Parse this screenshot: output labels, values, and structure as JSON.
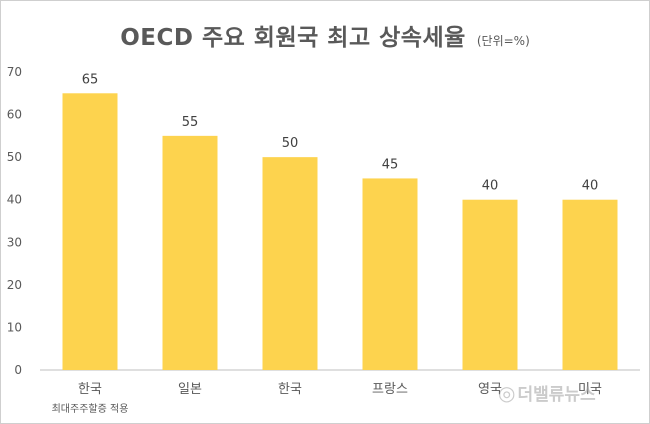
{
  "chart_data": {
    "type": "bar",
    "title": "OECD 주요 회원국 최고 상속세율",
    "unit_note": "(단위=%)",
    "categories": [
      "한국",
      "일본",
      "한국",
      "프랑스",
      "영국",
      "미국"
    ],
    "category_sublabels": [
      "최대주주할증 적용",
      "",
      "",
      "",
      "",
      ""
    ],
    "values": [
      65,
      55,
      50,
      45,
      40,
      40
    ],
    "data_labels": [
      "65",
      "55",
      "50",
      "45",
      "40",
      "40"
    ],
    "ylim": [
      0,
      70
    ],
    "yticks": [
      0,
      10,
      20,
      30,
      40,
      50,
      60,
      70
    ],
    "grid": false,
    "legend": "none",
    "bar_color": "#FDD34E",
    "text_color": "#595959"
  },
  "watermark": {
    "text": "더밸류뉴스",
    "icon": "circle-logo-icon"
  }
}
